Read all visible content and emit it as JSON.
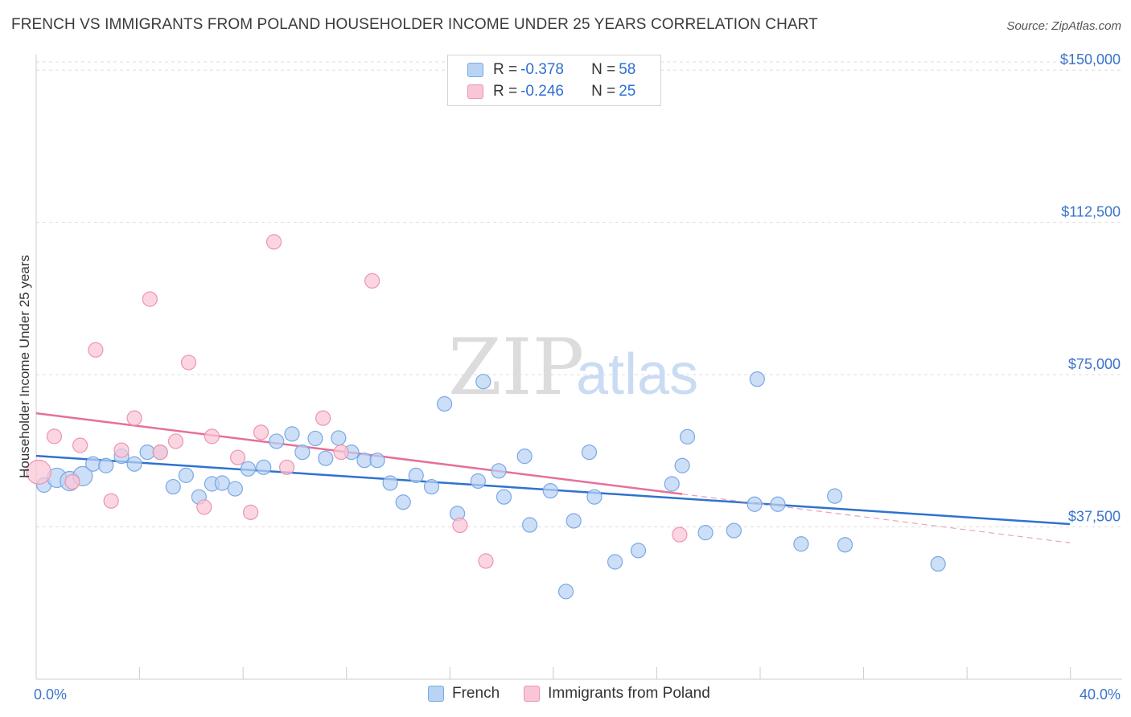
{
  "header": {
    "title": "FRENCH VS IMMIGRANTS FROM POLAND HOUSEHOLDER INCOME UNDER 25 YEARS CORRELATION CHART",
    "source": "Source: ZipAtlas.com"
  },
  "watermark": {
    "zip": "ZIP",
    "atlas": "atlas"
  },
  "legend_top": [
    {
      "r_label": "R = ",
      "r_value": "-0.378",
      "n_label": "N = ",
      "n_value": "58",
      "fill": "#b9d3f3",
      "stroke": "#7aa8e6"
    },
    {
      "r_label": "R = ",
      "r_value": "-0.246",
      "n_label": "N = ",
      "n_value": "25",
      "fill": "#f9c6d6",
      "stroke": "#ee93b1"
    }
  ],
  "legend_bottom": [
    {
      "label": "French",
      "fill": "#b9d3f3",
      "stroke": "#7aa8e6"
    },
    {
      "label": "Immigrants from Poland",
      "fill": "#f9c6d6",
      "stroke": "#ee93b1"
    }
  ],
  "chart_data": {
    "type": "scatter",
    "title": "FRENCH VS IMMIGRANTS FROM POLAND HOUSEHOLDER INCOME UNDER 25 YEARS CORRELATION CHART",
    "xlabel": "",
    "ylabel": "Householder Income Under 25 years",
    "xlim": [
      0,
      40
    ],
    "ylim": [
      0,
      154000
    ],
    "x_tick_labels": [
      {
        "value": 0,
        "label": "0.0%"
      },
      {
        "value": 40,
        "label": "40.0%"
      }
    ],
    "y_ticks": [
      {
        "value": 37500,
        "label": "$37,500"
      },
      {
        "value": 75000,
        "label": "$75,000"
      },
      {
        "value": 112500,
        "label": "$112,500"
      },
      {
        "value": 150000,
        "label": "$150,000"
      }
    ],
    "grid": true,
    "legend_position": "top-center",
    "series": [
      {
        "name": "French",
        "color": "#7aa8e6",
        "fill": "#b9d3f3",
        "points": [
          [
            0.3,
            47800
          ],
          [
            0.8,
            49600
          ],
          [
            1.3,
            48800
          ],
          [
            1.8,
            50000
          ],
          [
            2.2,
            53000
          ],
          [
            2.7,
            52600
          ],
          [
            3.3,
            54900
          ],
          [
            3.8,
            53000
          ],
          [
            4.3,
            55900
          ],
          [
            4.8,
            55900
          ],
          [
            5.3,
            47400
          ],
          [
            5.8,
            50200
          ],
          [
            6.3,
            44900
          ],
          [
            6.8,
            48100
          ],
          [
            7.2,
            48300
          ],
          [
            7.7,
            46900
          ],
          [
            8.2,
            51800
          ],
          [
            8.8,
            52200
          ],
          [
            9.3,
            58600
          ],
          [
            9.9,
            60400
          ],
          [
            10.3,
            55900
          ],
          [
            10.8,
            59300
          ],
          [
            11.2,
            54400
          ],
          [
            11.7,
            59400
          ],
          [
            12.2,
            55900
          ],
          [
            12.7,
            53900
          ],
          [
            13.2,
            53900
          ],
          [
            13.7,
            48300
          ],
          [
            14.2,
            43600
          ],
          [
            14.7,
            50200
          ],
          [
            15.3,
            47400
          ],
          [
            15.8,
            67800
          ],
          [
            16.3,
            40800
          ],
          [
            17.1,
            48800
          ],
          [
            17.3,
            73300
          ],
          [
            17.9,
            51300
          ],
          [
            18.1,
            44900
          ],
          [
            18.9,
            54900
          ],
          [
            19.1,
            38000
          ],
          [
            19.9,
            46400
          ],
          [
            20.5,
            21600
          ],
          [
            20.8,
            39000
          ],
          [
            21.4,
            55900
          ],
          [
            21.6,
            44900
          ],
          [
            22.4,
            28900
          ],
          [
            23.3,
            31700
          ],
          [
            24.6,
            48100
          ],
          [
            25.0,
            52600
          ],
          [
            25.2,
            59700
          ],
          [
            25.9,
            36100
          ],
          [
            27.0,
            36600
          ],
          [
            27.8,
            43100
          ],
          [
            27.9,
            73900
          ],
          [
            28.7,
            43100
          ],
          [
            29.6,
            33300
          ],
          [
            30.9,
            45100
          ],
          [
            31.3,
            33100
          ],
          [
            34.9,
            28400
          ]
        ],
        "trend": {
          "x1": 0,
          "y1": 55000,
          "x2": 40,
          "y2": 38200
        }
      },
      {
        "name": "Immigrants from Poland",
        "color": "#ee93b1",
        "fill": "#f9c6d6",
        "points": [
          [
            0.1,
            51000
          ],
          [
            0.7,
            59800
          ],
          [
            1.4,
            48600
          ],
          [
            1.7,
            57600
          ],
          [
            2.9,
            43900
          ],
          [
            2.3,
            81100
          ],
          [
            3.3,
            56400
          ],
          [
            3.8,
            64300
          ],
          [
            4.4,
            93600
          ],
          [
            4.8,
            55900
          ],
          [
            5.4,
            58600
          ],
          [
            5.9,
            78000
          ],
          [
            6.5,
            42400
          ],
          [
            6.8,
            59800
          ],
          [
            7.8,
            54600
          ],
          [
            8.3,
            41100
          ],
          [
            8.7,
            60800
          ],
          [
            9.2,
            107700
          ],
          [
            9.7,
            52200
          ],
          [
            11.1,
            64300
          ],
          [
            11.8,
            55900
          ],
          [
            13.0,
            98100
          ],
          [
            16.4,
            37900
          ],
          [
            17.4,
            29100
          ],
          [
            24.9,
            35600
          ]
        ],
        "trend": {
          "x1": 0,
          "y1": 65500,
          "x2": 25,
          "y2": 45600
        },
        "trend_extension": {
          "x1": 25,
          "y1": 45600,
          "x2": 40,
          "y2": 33600
        }
      }
    ]
  }
}
